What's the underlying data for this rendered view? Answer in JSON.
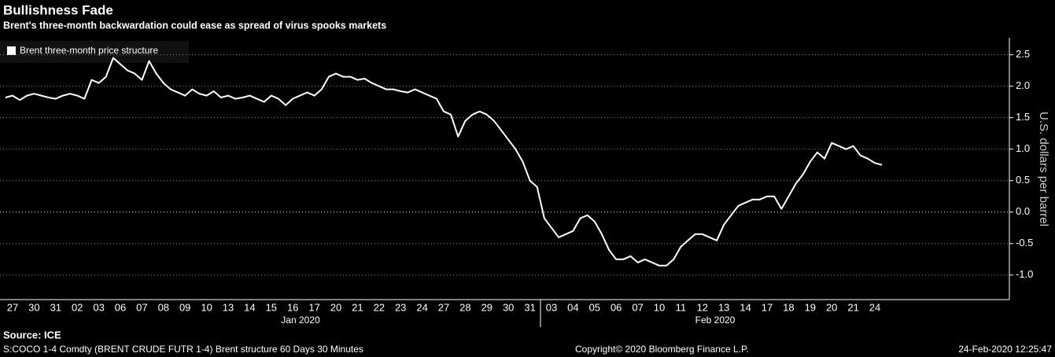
{
  "chart_data": {
    "type": "line",
    "title": "Bullishness Fade",
    "subtitle": "Brent's three-month backwardation could ease as spread of virus spooks markets",
    "y_axis_label": "U.S. dollars per barrel",
    "month_labels": [
      "Jan 2020",
      "Feb 2020"
    ],
    "source": "Source: ICE",
    "footer_left": "S:COCO 1-4 Comdty (BRENT CRUDE FUTR   1-4) Brent structure 60 Days 30 Minutes",
    "footer_center": "Copyright© 2020 Bloomberg Finance L.P.",
    "footer_right": "24-Feb-2020 12:25:47",
    "grid": true,
    "legend": "top-left",
    "categories": [
      null,
      "27",
      null,
      null,
      "30",
      null,
      null,
      "31",
      null,
      null,
      "02",
      null,
      null,
      "03",
      null,
      null,
      "06",
      null,
      null,
      "07",
      null,
      null,
      "08",
      null,
      null,
      "09",
      null,
      null,
      "10",
      null,
      null,
      "13",
      null,
      null,
      "14",
      null,
      null,
      "15",
      null,
      null,
      "16",
      null,
      null,
      "17",
      null,
      null,
      "20",
      null,
      null,
      "21",
      null,
      null,
      "22",
      null,
      null,
      "23",
      null,
      null,
      "24",
      null,
      null,
      "27",
      null,
      null,
      "28",
      null,
      null,
      "29",
      null,
      null,
      "30",
      null,
      null,
      "31",
      null,
      null,
      "03",
      null,
      null,
      "04",
      null,
      null,
      "05",
      null,
      null,
      "06",
      null,
      null,
      "07",
      null,
      null,
      "10",
      null,
      null,
      "11",
      null,
      null,
      "12",
      null,
      null,
      "13",
      null,
      null,
      "14",
      null,
      null,
      "17",
      null,
      null,
      "18",
      null,
      null,
      "19",
      null,
      null,
      "20",
      null,
      null,
      "21",
      null,
      null,
      "24",
      null
    ],
    "series": [
      {
        "name": "Brent three-month price structure",
        "color": "#ffffff",
        "values": [
          1.82,
          1.85,
          1.78,
          1.85,
          1.88,
          1.85,
          1.82,
          1.8,
          1.85,
          1.88,
          1.85,
          1.8,
          2.1,
          2.05,
          2.15,
          2.45,
          2.35,
          2.25,
          2.2,
          2.1,
          2.4,
          2.2,
          2.05,
          1.95,
          1.9,
          1.85,
          1.95,
          1.88,
          1.85,
          1.92,
          1.82,
          1.85,
          1.8,
          1.82,
          1.85,
          1.8,
          1.75,
          1.85,
          1.8,
          1.7,
          1.8,
          1.85,
          1.9,
          1.85,
          1.95,
          2.15,
          2.2,
          2.15,
          2.15,
          2.1,
          2.12,
          2.05,
          2.0,
          1.95,
          1.95,
          1.92,
          1.9,
          1.95,
          1.9,
          1.85,
          1.8,
          1.6,
          1.55,
          1.2,
          1.45,
          1.55,
          1.6,
          1.55,
          1.45,
          1.3,
          1.15,
          1.0,
          0.8,
          0.5,
          0.4,
          -0.1,
          -0.25,
          -0.4,
          -0.35,
          -0.3,
          -0.1,
          -0.05,
          -0.15,
          -0.35,
          -0.6,
          -0.75,
          -0.75,
          -0.7,
          -0.8,
          -0.75,
          -0.8,
          -0.85,
          -0.85,
          -0.75,
          -0.55,
          -0.45,
          -0.35,
          -0.35,
          -0.4,
          -0.45,
          -0.2,
          -0.05,
          0.1,
          0.15,
          0.2,
          0.2,
          0.25,
          0.25,
          0.05,
          0.25,
          0.45,
          0.6,
          0.8,
          0.95,
          0.85,
          1.1,
          1.05,
          1.0,
          1.05,
          0.9,
          0.85,
          0.78,
          0.75
        ]
      }
    ],
    "ylim": [
      -1.39,
      2.77
    ],
    "yticks": [
      2.5,
      {
        "value": 2,
        "label": "2.0"
      },
      1.5,
      {
        "value": 1,
        "label": "1.0"
      },
      0.5,
      {
        "value": 0,
        "label": "0.0"
      },
      -0.5,
      {
        "value": -1,
        "label": "-1.0"
      }
    ]
  }
}
